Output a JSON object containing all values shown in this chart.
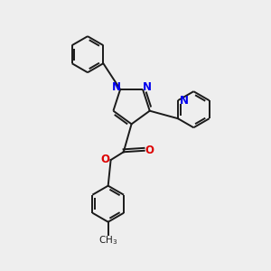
{
  "bg_color": "#eeeeee",
  "bond_color": "#1a1a1a",
  "n_color": "#0000ee",
  "o_color": "#dd0000",
  "lw": 1.4,
  "figsize": [
    3.0,
    3.0
  ],
  "dpi": 100,
  "xlim": [
    0,
    10
  ],
  "ylim": [
    0,
    10
  ]
}
